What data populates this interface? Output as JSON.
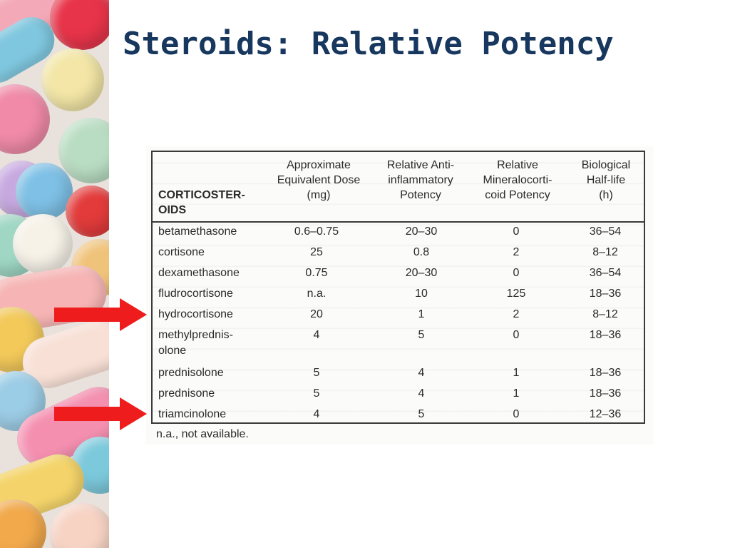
{
  "slide": {
    "title": "Steroids: Relative Potency"
  },
  "table": {
    "corner_header": "CORTICOSTER-\nOIDS",
    "headers": [
      "Approximate\nEquivalent Dose\n(mg)",
      "Relative Anti-\ninflammatory\nPotency",
      "Relative\nMineralocorti-\ncoid Potency",
      "Biological\nHalf-life\n(h)"
    ],
    "rows": [
      {
        "name": "betamethasone",
        "dose": "0.6–0.75",
        "anti": "20–30",
        "mineral": "0",
        "half_life": "36–54"
      },
      {
        "name": "cortisone",
        "dose": "25",
        "anti": "0.8",
        "mineral": "2",
        "half_life": "8–12"
      },
      {
        "name": "dexamethasone",
        "dose": "0.75",
        "anti": "20–30",
        "mineral": "0",
        "half_life": "36–54"
      },
      {
        "name": "fludrocortisone",
        "dose": "n.a.",
        "anti": "10",
        "mineral": "125",
        "half_life": "18–36"
      },
      {
        "name": "hydrocortisone",
        "dose": "20",
        "anti": "1",
        "mineral": "2",
        "half_life": "8–12"
      },
      {
        "name": "methylprednis-\nolone",
        "dose": "4",
        "anti": "5",
        "mineral": "0",
        "half_life": "18–36"
      },
      {
        "name": "prednisolone",
        "dose": "5",
        "anti": "4",
        "mineral": "1",
        "half_life": "18–36"
      },
      {
        "name": "prednisone",
        "dose": "5",
        "anti": "4",
        "mineral": "1",
        "half_life": "18–36"
      },
      {
        "name": "triamcinolone",
        "dose": "4",
        "anti": "5",
        "mineral": "0",
        "half_life": "12–36"
      }
    ],
    "footnote": "n.a., not available."
  },
  "colors": {
    "title": "#17375e",
    "arrow": "#ee1c1c"
  },
  "icons": [
    "arrow-right-icon",
    "arrow-right-icon"
  ]
}
